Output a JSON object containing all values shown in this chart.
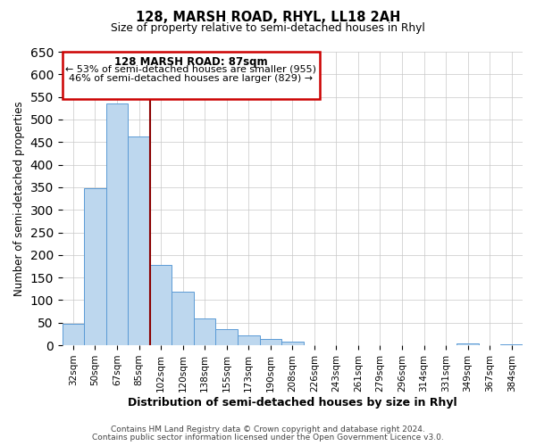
{
  "title": "128, MARSH ROAD, RHYL, LL18 2AH",
  "subtitle": "Size of property relative to semi-detached houses in Rhyl",
  "xlabel": "Distribution of semi-detached houses by size in Rhyl",
  "ylabel": "Number of semi-detached properties",
  "bin_labels": [
    "32sqm",
    "50sqm",
    "67sqm",
    "85sqm",
    "102sqm",
    "120sqm",
    "138sqm",
    "155sqm",
    "173sqm",
    "190sqm",
    "208sqm",
    "226sqm",
    "243sqm",
    "261sqm",
    "279sqm",
    "296sqm",
    "314sqm",
    "331sqm",
    "349sqm",
    "367sqm",
    "384sqm"
  ],
  "bar_values": [
    47,
    348,
    535,
    463,
    177,
    118,
    60,
    35,
    22,
    15,
    9,
    0,
    0,
    0,
    0,
    0,
    0,
    0,
    4,
    0,
    3
  ],
  "bar_color": "#bdd7ee",
  "bar_edge_color": "#5b9bd5",
  "ylim_max": 650,
  "yticks": [
    0,
    50,
    100,
    150,
    200,
    250,
    300,
    350,
    400,
    450,
    500,
    550,
    600,
    650
  ],
  "annotation_title": "128 MARSH ROAD: 87sqm",
  "annotation_line1": "← 53% of semi-detached houses are smaller (955)",
  "annotation_line2": "46% of semi-detached houses are larger (829) →",
  "annotation_box_edge_color": "#cc0000",
  "footer_line1": "Contains HM Land Registry data © Crown copyright and database right 2024.",
  "footer_line2": "Contains public sector information licensed under the Open Government Licence v3.0.",
  "background_color": "#ffffff",
  "grid_color": "#c8c8c8",
  "property_line_color": "#8b0000",
  "property_line_xbar": 3.5
}
